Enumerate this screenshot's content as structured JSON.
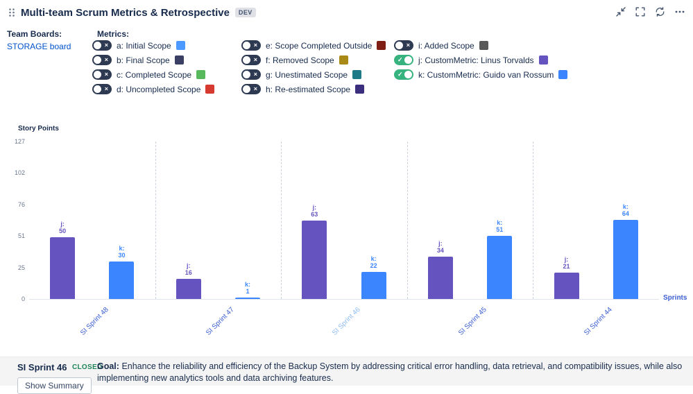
{
  "header": {
    "title": "Multi-team Scrum Metrics & Retrospective",
    "badge": "DEV",
    "icons": [
      "drag-handle-icon",
      "collapse-icon",
      "fullscreen-icon",
      "refresh-icon",
      "more-options-icon"
    ]
  },
  "team_boards": {
    "label": "Team Boards:",
    "board_link": "STORAGE board"
  },
  "metrics": {
    "label": "Metrics:",
    "columns": [
      [
        {
          "key": "a",
          "label": "a: Initial Scope",
          "color": "#4C9AFF",
          "enabled": false
        },
        {
          "key": "b",
          "label": "b: Final Scope",
          "color": "#3A3F63",
          "enabled": false
        },
        {
          "key": "c",
          "label": "c: Completed Scope",
          "color": "#57B85C",
          "enabled": false
        },
        {
          "key": "d",
          "label": "d: Uncompleted Scope",
          "color": "#D6392F",
          "enabled": false
        }
      ],
      [
        {
          "key": "e",
          "label": "e: Scope Completed Outside",
          "color": "#7E1E14",
          "enabled": false
        },
        {
          "key": "f",
          "label": "f: Removed Scope",
          "color": "#AA8A16",
          "enabled": false
        },
        {
          "key": "g",
          "label": "g: Unestimated Scope",
          "color": "#1F7A87",
          "enabled": false
        },
        {
          "key": "h",
          "label": "h: Re-estimated Scope",
          "color": "#3B2E7E",
          "enabled": false
        }
      ],
      [
        {
          "key": "i",
          "label": "i: Added Scope",
          "color": "#595959",
          "enabled": false
        },
        {
          "key": "j",
          "label": "j: CustomMetric: Linus Torvalds",
          "color": "#6554C0",
          "enabled": true
        },
        {
          "key": "k",
          "label": "k: CustomMetric: Guido van Rossum",
          "color": "#3B86FF",
          "enabled": true
        }
      ]
    ]
  },
  "chart_data": {
    "type": "bar",
    "ylabel": "Story Points",
    "xlabel": "Sprints",
    "ylim": [
      0,
      127
    ],
    "yticks": [
      0,
      25,
      51,
      76,
      102,
      127
    ],
    "grid": "dashed vertical separators between sprint groups",
    "legend": "metric toggles above chart",
    "categories": [
      "SI Sprint 48",
      "SI Sprint 47",
      "SI Sprint 46",
      "SI Sprint 45",
      "SI Sprint 44"
    ],
    "selected_category": "SI Sprint 46",
    "series": [
      {
        "name": "j",
        "color": "#6554C0",
        "values": [
          50,
          16,
          63,
          34,
          21
        ]
      },
      {
        "name": "k",
        "color": "#3B86FF",
        "values": [
          30,
          1,
          22,
          51,
          64
        ]
      }
    ]
  },
  "footer": {
    "sprint_name": "SI Sprint 46",
    "status": "CLOSED",
    "goal_label": "Goal:",
    "goal_text": "Enhance the reliability and efficiency of the Backup System by addressing critical error handling, data retrieval, and compatibility issues, while also implementing new analytics tools and data archiving features.",
    "show_summary_label": "Show Summary"
  },
  "colors": {
    "accent_link": "#0052CC",
    "sprint_label": "#3A5DD0",
    "sprint_label_selected": "#8FBCF2",
    "toggle_on": "#36B37E",
    "toggle_off": "#2E3A52"
  }
}
